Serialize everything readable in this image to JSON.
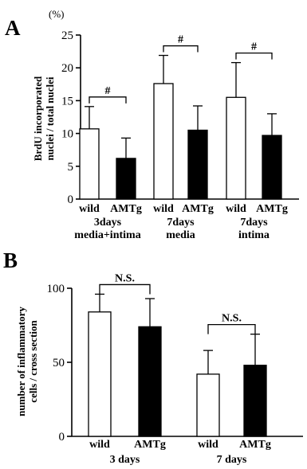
{
  "chart_data": [
    {
      "type": "bar",
      "panel_label": "A",
      "ylabel_line1": "BrdU incorporated",
      "ylabel_line2": "nuclei / total nuclei",
      "yunit": "(%)",
      "ylim": [
        0,
        25
      ],
      "yticks": [
        "0",
        "5",
        "10",
        "15",
        "20",
        "25"
      ],
      "groups": [
        {
          "label_line1": "3days",
          "label_line2": "media+intima",
          "significance": "#",
          "bars": [
            {
              "label": "wild",
              "value": 10.7,
              "error": 3.4,
              "fill": "white"
            },
            {
              "label": "AMTg",
              "value": 6.2,
              "error": 3.1,
              "fill": "black"
            }
          ]
        },
        {
          "label_line1": "7days",
          "label_line2": "media",
          "significance": "#",
          "bars": [
            {
              "label": "wild",
              "value": 17.6,
              "error": 4.3,
              "fill": "white"
            },
            {
              "label": "AMTg",
              "value": 10.5,
              "error": 3.7,
              "fill": "black"
            }
          ]
        },
        {
          "label_line1": "7days",
          "label_line2": "intima",
          "significance": "#",
          "bars": [
            {
              "label": "wild",
              "value": 15.5,
              "error": 5.3,
              "fill": "white"
            },
            {
              "label": "AMTg",
              "value": 9.7,
              "error": 3.3,
              "fill": "black"
            }
          ]
        }
      ]
    },
    {
      "type": "bar",
      "panel_label": "B",
      "ylabel_line1": "number of inflammatory",
      "ylabel_line2": "cells / cross section",
      "ylim": [
        0,
        100
      ],
      "yticks": [
        "0",
        "50",
        "100"
      ],
      "groups": [
        {
          "label_line1": "3 days",
          "significance": "N.S.",
          "bars": [
            {
              "label": "wild",
              "value": 84,
              "error": 12,
              "fill": "white"
            },
            {
              "label": "AMTg",
              "value": 74,
              "error": 19,
              "fill": "black"
            }
          ]
        },
        {
          "label_line1": "7 days",
          "significance": "N.S.",
          "bars": [
            {
              "label": "wild",
              "value": 42,
              "error": 16,
              "fill": "white"
            },
            {
              "label": "AMTg",
              "value": 48,
              "error": 21,
              "fill": "black"
            }
          ]
        }
      ]
    }
  ]
}
